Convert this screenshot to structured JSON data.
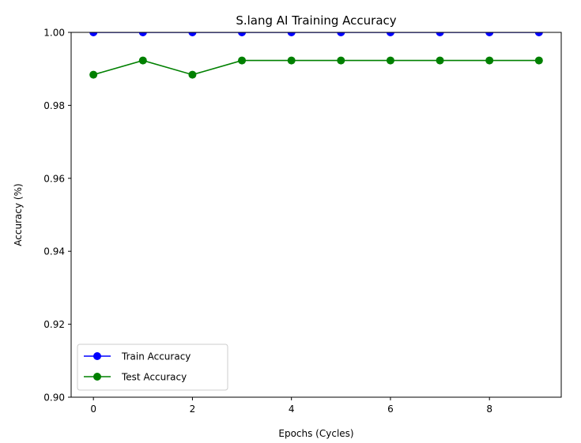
{
  "chart_data": {
    "type": "line",
    "title": "S.lang AI Training Accuracy",
    "xlabel": "Epochs (Cycles)",
    "ylabel": "Accuracy (%)",
    "x": [
      0,
      1,
      2,
      3,
      4,
      5,
      6,
      7,
      8,
      9
    ],
    "xlim": [
      -0.45,
      9.45
    ],
    "ylim": [
      0.9,
      1.0
    ],
    "xticks": [
      0,
      2,
      4,
      6,
      8
    ],
    "xtick_labels": [
      "0",
      "2",
      "4",
      "6",
      "8"
    ],
    "yticks": [
      0.9,
      0.92,
      0.94,
      0.96,
      0.98,
      1.0
    ],
    "ytick_labels": [
      "0.90",
      "0.92",
      "0.94",
      "0.96",
      "0.98",
      "1.00"
    ],
    "grid": false,
    "legend_position": "lower-left",
    "series": [
      {
        "name": "Train Accuracy",
        "color": "#0000ff",
        "marker": "circle",
        "values": [
          1.0,
          1.0,
          1.0,
          1.0,
          1.0,
          1.0,
          1.0,
          1.0,
          1.0,
          1.0
        ]
      },
      {
        "name": "Test Accuracy",
        "color": "#008000",
        "marker": "circle",
        "values": [
          0.9884,
          0.9923,
          0.9884,
          0.9923,
          0.9923,
          0.9923,
          0.9923,
          0.9923,
          0.9923,
          0.9923
        ]
      }
    ]
  }
}
